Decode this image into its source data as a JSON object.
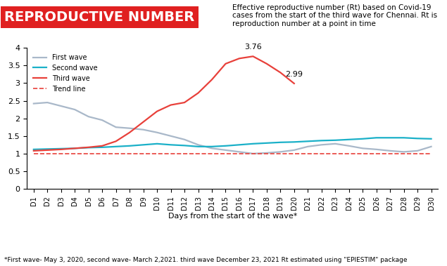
{
  "chart_data": {
    "type": "line",
    "title": "REPRODUCTIVE NUMBER",
    "subtitle": "Effective reproductive number (Rt) based on Covid-19 cases from the start of the third wave for Chennai. Rt is reproduction number at a point in time",
    "x_label": "Days from the start of the wave*",
    "footnote": "*First wave- May 3, 2020, second wave- March 2,2021. third wave December 23, 2021 Rt estimated using \"EPIESTIM\" package",
    "categories": [
      "D1",
      "D2",
      "D3",
      "D4",
      "D5",
      "D6",
      "D7",
      "D8",
      "D9",
      "D10",
      "D11",
      "D12",
      "D13",
      "D14",
      "D15",
      "D16",
      "D17",
      "D18",
      "D19",
      "D20",
      "D21",
      "D22",
      "D23",
      "D24",
      "D25",
      "D26",
      "D27",
      "D28",
      "D29",
      "D30"
    ],
    "series": [
      {
        "name": "First wave",
        "color": "#a9b8c9",
        "line_style": "solid",
        "values": [
          2.42,
          2.45,
          2.35,
          2.25,
          2.05,
          1.95,
          1.75,
          1.72,
          1.68,
          1.6,
          1.5,
          1.4,
          1.25,
          1.15,
          1.1,
          1.05,
          1.0,
          1.02,
          1.05,
          1.1,
          1.2,
          1.25,
          1.28,
          1.22,
          1.15,
          1.12,
          1.08,
          1.05,
          1.08,
          1.2
        ]
      },
      {
        "name": "Second wave",
        "color": "#1ab0c8",
        "line_style": "solid",
        "values": [
          1.12,
          1.13,
          1.14,
          1.15,
          1.17,
          1.18,
          1.2,
          1.22,
          1.25,
          1.28,
          1.25,
          1.23,
          1.2,
          1.2,
          1.22,
          1.25,
          1.28,
          1.3,
          1.32,
          1.33,
          1.35,
          1.37,
          1.38,
          1.4,
          1.42,
          1.45,
          1.45,
          1.45,
          1.43,
          1.42
        ]
      },
      {
        "name": "Third wave",
        "color": "#e8403a",
        "line_style": "solid",
        "values": [
          1.08,
          1.1,
          1.12,
          1.15,
          1.18,
          1.22,
          1.35,
          1.6,
          1.9,
          2.2,
          2.38,
          2.45,
          2.72,
          3.1,
          3.55,
          3.7,
          3.76,
          3.55,
          3.3,
          2.99,
          null,
          null,
          null,
          null,
          null,
          null,
          null,
          null,
          null,
          null
        ]
      },
      {
        "name": "Trend line",
        "color": "#e8403a",
        "line_style": "dashed",
        "values": [
          1,
          1,
          1,
          1,
          1,
          1,
          1,
          1,
          1,
          1,
          1,
          1,
          1,
          1,
          1,
          1,
          1,
          1,
          1,
          1,
          1,
          1,
          1,
          1,
          1,
          1,
          1,
          1,
          1,
          1
        ]
      }
    ],
    "annotations": [
      {
        "text": "3.76",
        "x": "D17",
        "y": 3.76
      },
      {
        "text": "2.99",
        "x": "D20",
        "y": 2.99
      }
    ],
    "ylim": [
      0,
      4
    ],
    "yticks": [
      0,
      0.5,
      1,
      1.5,
      2,
      2.5,
      3,
      3.5,
      4
    ],
    "grid": false,
    "legend": "upper left"
  }
}
